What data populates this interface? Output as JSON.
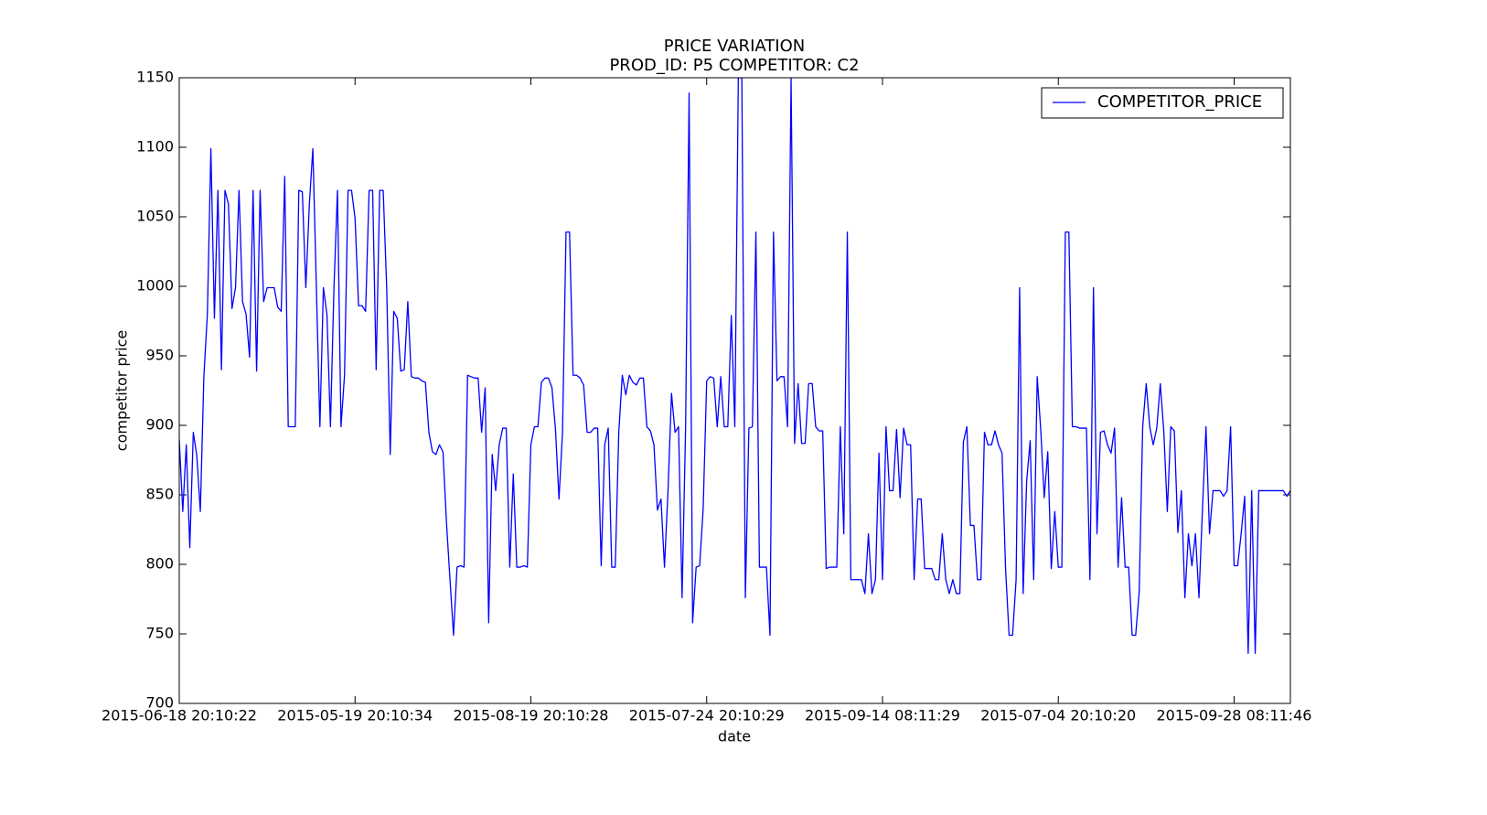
{
  "chart_data": {
    "type": "line",
    "title": "PRICE VARIATION",
    "subtitle": "PROD_ID: P5 COMPETITOR: C2",
    "x_label": "date",
    "y_label": "competitor price",
    "legend_position": "upper right",
    "xlim": [
      0,
      316
    ],
    "xticks": [
      {
        "value": 0,
        "label": "2015-06-18 20:10:22"
      },
      {
        "value": 50,
        "label": "2015-05-19 20:10:34"
      },
      {
        "value": 100,
        "label": "2015-08-19 20:10:28"
      },
      {
        "value": 150,
        "label": "2015-07-24 20:10:29"
      },
      {
        "value": 200,
        "label": "2015-09-14 08:11:29"
      },
      {
        "value": 250,
        "label": "2015-07-04 20:10:20"
      },
      {
        "value": 300,
        "label": "2015-09-28 08:11:46"
      }
    ],
    "ylim": [
      700,
      1150
    ],
    "yticks": [
      700,
      750,
      800,
      850,
      900,
      950,
      1000,
      1050,
      1100,
      1150
    ],
    "series": [
      {
        "name": "COMPETITOR_PRICE",
        "color": "#0000ff",
        "values": [
          890,
          838,
          886,
          812,
          895,
          878,
          838,
          935,
          980,
          1099,
          977,
          1069,
          940,
          1069,
          1059,
          984,
          999,
          1069,
          989,
          980,
          949,
          1069,
          939,
          1069,
          989,
          999,
          999,
          999,
          985,
          982,
          1079,
          899,
          899,
          899,
          1069,
          1068,
          999,
          1059,
          1099,
          999,
          899,
          999,
          980,
          899,
          999,
          1069,
          899,
          936,
          1069,
          1069,
          1049,
          986,
          986,
          982,
          1069,
          1069,
          940,
          1069,
          1069,
          999,
          879,
          982,
          977,
          939,
          940,
          989,
          935,
          934,
          934,
          932,
          931,
          895,
          881,
          879,
          886,
          881,
          830,
          789,
          749,
          798,
          799,
          798,
          936,
          935,
          934,
          934,
          895,
          927,
          758,
          879,
          853,
          886,
          898,
          898,
          798,
          865,
          798,
          798,
          799,
          798,
          886,
          899,
          899,
          931,
          934,
          934,
          927,
          897,
          847,
          895,
          1039,
          1039,
          936,
          936,
          934,
          929,
          895,
          895,
          898,
          898,
          799,
          886,
          898,
          798,
          798,
          895,
          936,
          922,
          936,
          931,
          929,
          934,
          934,
          899,
          896,
          886,
          839,
          847,
          798,
          853,
          923,
          895,
          899,
          776,
          898,
          1139,
          758,
          798,
          799,
          840,
          932,
          935,
          934,
          899,
          935,
          899,
          899,
          979,
          899,
          1150,
          1150,
          776,
          898,
          899,
          1039,
          798,
          798,
          798,
          749,
          1039,
          932,
          935,
          935,
          899,
          1150,
          887,
          930,
          887,
          887,
          930,
          930,
          899,
          896,
          896,
          797,
          798,
          798,
          798,
          899,
          822,
          1039,
          789,
          789,
          789,
          789,
          779,
          822,
          779,
          789,
          880,
          789,
          899,
          853,
          853,
          897,
          848,
          898,
          886,
          886,
          789,
          847,
          847,
          797,
          797,
          797,
          789,
          789,
          822,
          789,
          779,
          789,
          779,
          779,
          888,
          899,
          828,
          828,
          789,
          789,
          895,
          886,
          886,
          896,
          886,
          880,
          797,
          749,
          749,
          789,
          999,
          779,
          860,
          889,
          789,
          935,
          897,
          848,
          881,
          797,
          838,
          798,
          798,
          1039,
          1039,
          899,
          899,
          898,
          898,
          898,
          789,
          999,
          822,
          895,
          896,
          886,
          880,
          898,
          798,
          848,
          798,
          798,
          749,
          749,
          780,
          899,
          930,
          899,
          886,
          898,
          930,
          896,
          838,
          899,
          896,
          823,
          853,
          776,
          822,
          799,
          822,
          776,
          840,
          899,
          822,
          853,
          853,
          853,
          849,
          853,
          899,
          799,
          799,
          822,
          849,
          736,
          853,
          736,
          853,
          853,
          853,
          853,
          853,
          853,
          853,
          853,
          849,
          853
        ]
      }
    ]
  }
}
